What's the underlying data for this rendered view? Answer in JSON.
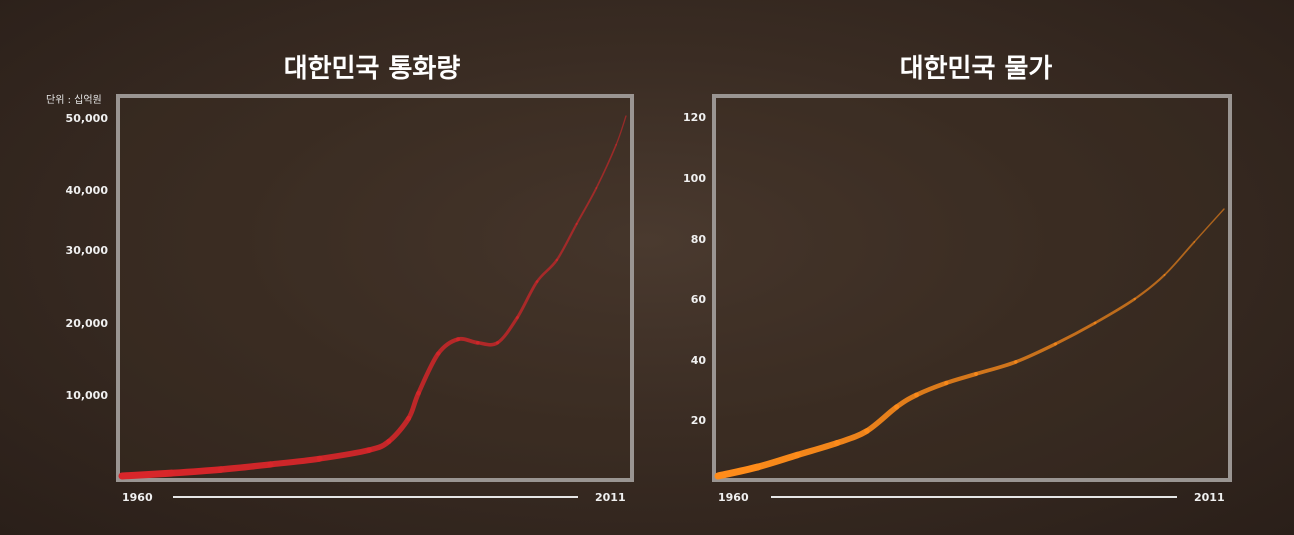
{
  "chart_data": [
    {
      "type": "line",
      "title": "대한민국 통화량",
      "unit_label": "단위 : 십억원",
      "y_ticks": [
        "10,000",
        "20,000",
        "30,000",
        "40,000",
        "50,000"
      ],
      "y_tick_values": [
        10000,
        20000,
        30000,
        40000,
        50000
      ],
      "ylim": [
        0,
        50000
      ],
      "x_start_label": "1960",
      "x_end_label": "2011",
      "xlim": [
        1960,
        2011
      ],
      "color": "#d8262a",
      "series": [
        {
          "x": [
            1960,
            1965,
            1970,
            1975,
            1980,
            1985,
            1987,
            1989,
            1990,
            1992,
            1994,
            1996,
            1998,
            2000,
            2002,
            2004,
            2006,
            2008,
            2010,
            2011
          ],
          "values": [
            0,
            400,
            900,
            1600,
            2400,
            3600,
            4800,
            8000,
            11500,
            17000,
            19000,
            18500,
            18500,
            22000,
            27000,
            30000,
            35000,
            40000,
            46000,
            50000
          ]
        }
      ]
    },
    {
      "type": "line",
      "title": "대한민국 물가",
      "y_ticks": [
        "20",
        "40",
        "60",
        "80",
        "100",
        "120"
      ],
      "y_tick_values": [
        20,
        40,
        60,
        80,
        100,
        120
      ],
      "ylim": [
        0,
        120
      ],
      "x_start_label": "1960",
      "x_end_label": "2011",
      "xlim": [
        1960,
        2011
      ],
      "color": "#ff8c1a",
      "series": [
        {
          "x": [
            1960,
            1964,
            1968,
            1972,
            1975,
            1978,
            1980,
            1983,
            1986,
            1990,
            1994,
            1998,
            2002,
            2005,
            2008,
            2011
          ],
          "values": [
            0,
            3,
            7,
            11,
            15,
            23,
            27,
            31,
            34,
            38,
            44,
            51,
            59,
            67,
            78,
            89
          ]
        }
      ]
    }
  ]
}
